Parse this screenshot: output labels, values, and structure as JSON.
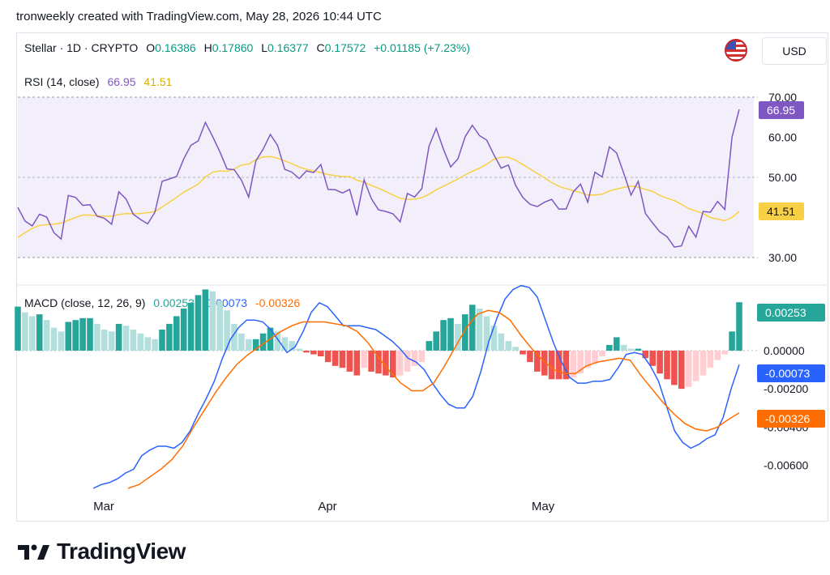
{
  "header": {
    "caption": "tronweekly created with TradingView.com, May 28, 2026 10:44 UTC"
  },
  "symbol": {
    "name": "Stellar · 1D · CRYPTO",
    "o_label": "O",
    "o": "0.16386",
    "h_label": "H",
    "h": "0.17860",
    "l_label": "L",
    "l": "0.16377",
    "c_label": "C",
    "c": "0.17572",
    "change": "+0.01185 (+7.23%)"
  },
  "currency": "USD",
  "brand": {
    "name": "TradingView"
  },
  "colors": {
    "rsi_line": "#7e57c2",
    "rsi_ma": "#f7d046",
    "rsi_bg": "#f3effa",
    "macd_line": "#2962ff",
    "signal_line": "#ff6d00",
    "hist_pos_strong": "#26a69a",
    "hist_pos_weak": "#b2dfdb",
    "hist_neg_strong": "#ef5350",
    "hist_neg_weak": "#ffcdd2"
  },
  "chart_data": [
    {
      "type": "line",
      "title": "RSI (14, close)",
      "legend_values": [
        "66.95",
        "41.51"
      ],
      "ylim": [
        30,
        70
      ],
      "yticks": [
        "70.00",
        "60.00",
        "50.00",
        "30.00"
      ],
      "badges": [
        "66.95",
        "41.51"
      ],
      "series": [
        {
          "name": "RSI",
          "values": [
            42.5,
            39.1,
            37.9,
            40.8,
            40.1,
            36.2,
            34.6,
            45.5,
            45.0,
            43.0,
            43.2,
            40.3,
            39.8,
            38.3,
            46.4,
            44.6,
            40.8,
            39.5,
            38.4,
            41.3,
            49.0,
            49.6,
            50.2,
            54.6,
            58.0,
            59.1,
            63.7,
            60.2,
            56.4,
            52.1,
            51.9,
            49.3,
            45.1,
            54.1,
            57.0,
            60.7,
            58.0,
            52.0,
            51.3,
            49.7,
            51.6,
            51.2,
            53.2,
            47.0,
            46.9,
            46.1,
            47.0,
            40.5,
            49.4,
            44.7,
            41.9,
            41.5,
            40.9,
            38.9,
            46.0,
            45.1,
            47.2,
            57.8,
            62.2,
            57.0,
            52.6,
            54.6,
            60.1,
            63.0,
            60.4,
            59.3,
            55.6,
            52.3,
            53.1,
            48.0,
            45.0,
            43.3,
            42.7,
            43.8,
            44.5,
            42.1,
            42.1,
            46.4,
            48.3,
            43.8,
            51.3,
            50.1,
            57.6,
            56.1,
            51.0,
            45.6,
            49.0,
            41.0,
            38.6,
            36.4,
            35.2,
            32.6,
            32.9,
            37.8,
            35.1,
            41.5,
            41.3,
            44.0,
            42.0,
            60.0,
            66.95
          ]
        },
        {
          "name": "MA",
          "values": [
            35.0,
            36.2,
            37.3,
            38.0,
            38.2,
            38.3,
            38.6,
            39.3,
            40.0,
            40.6,
            40.6,
            40.4,
            40.3,
            40.3,
            40.7,
            41.0,
            40.9,
            41.0,
            41.2,
            41.5,
            42.6,
            43.8,
            45.0,
            46.3,
            47.3,
            48.3,
            50.1,
            51.3,
            51.6,
            51.5,
            52.1,
            53.1,
            53.3,
            54.4,
            55.1,
            55.2,
            54.8,
            54.1,
            53.4,
            52.6,
            52.0,
            51.6,
            51.2,
            50.7,
            50.4,
            50.2,
            50.2,
            49.3,
            48.8,
            48.0,
            47.3,
            46.5,
            45.6,
            44.8,
            44.5,
            44.6,
            44.9,
            45.8,
            46.9,
            47.8,
            48.7,
            49.6,
            50.6,
            51.5,
            52.3,
            53.3,
            54.5,
            55.0,
            55.0,
            54.3,
            53.2,
            52.1,
            51.0,
            49.9,
            48.7,
            47.8,
            47.2,
            46.7,
            46.2,
            45.6,
            45.6,
            45.8,
            46.6,
            47.1,
            47.5,
            47.8,
            47.6,
            47.0,
            46.5,
            45.5,
            44.8,
            44.2,
            43.3,
            42.2,
            41.6,
            41.0,
            40.0,
            39.6,
            39.2,
            40.0,
            41.51
          ]
        }
      ]
    },
    {
      "type": "bar",
      "title": "MACD (close, 12, 26, 9)",
      "legend_values": [
        "0.00253",
        "-0.00073",
        "-0.00326"
      ],
      "ylim": [
        -0.0072,
        0.0033
      ],
      "yticks": [
        "0.00200",
        "0.00000",
        "-0.00200",
        "-0.00400",
        "-0.00600"
      ],
      "badges": [
        "0.00253",
        "-0.00073",
        "-0.00326"
      ],
      "x_labels": [
        "Mar",
        "Apr",
        "May"
      ],
      "histogram": [
        0.0023,
        0.002,
        0.0018,
        0.0019,
        0.0016,
        0.0012,
        0.001,
        0.0015,
        0.0016,
        0.0017,
        0.0017,
        0.0014,
        0.0011,
        0.001,
        0.0014,
        0.0013,
        0.0011,
        0.0009,
        0.0007,
        0.0006,
        0.0011,
        0.0014,
        0.0018,
        0.0022,
        0.0025,
        0.0029,
        0.0032,
        0.0031,
        0.0026,
        0.0021,
        0.0014,
        0.0009,
        0.0006,
        0.0006,
        0.0009,
        0.0012,
        0.001,
        0.0007,
        0.0005,
        0.0001,
        -0.0001,
        -0.0002,
        -0.0003,
        -0.0006,
        -0.0008,
        -0.0009,
        -0.0011,
        -0.0013,
        -0.0009,
        -0.0011,
        -0.0012,
        -0.0013,
        -0.0014,
        -0.0013,
        -0.0011,
        -0.0008,
        -0.0006,
        0.0005,
        0.001,
        0.0016,
        0.0017,
        0.0014,
        0.0019,
        0.0024,
        0.0022,
        0.0018,
        0.0013,
        0.0009,
        0.0005,
        0.0002,
        -0.0002,
        -0.0006,
        -0.0011,
        -0.0013,
        -0.0015,
        -0.0015,
        -0.0015,
        -0.0014,
        -0.0012,
        -0.0009,
        -0.0007,
        -0.0003,
        0.0003,
        0.0007,
        0.0003,
        0.0001,
        0.0001,
        -0.0004,
        -0.0008,
        -0.0012,
        -0.0015,
        -0.0018,
        -0.002,
        -0.0019,
        -0.0016,
        -0.0013,
        -0.0009,
        -0.0005,
        -0.0002,
        0.001,
        0.00253
      ],
      "series": [
        {
          "name": "MACD",
          "values": [
            -0.0072,
            -0.007,
            -0.0069,
            -0.0067,
            -0.0064,
            -0.0062,
            -0.0055,
            -0.0052,
            -0.005,
            -0.005,
            -0.0051,
            -0.0048,
            -0.0042,
            -0.0033,
            -0.0025,
            -0.0016,
            -0.0004,
            0.0006,
            0.0012,
            0.0016,
            0.0016,
            0.0015,
            0.0011,
            0.0005,
            -0.0001,
            0.0002,
            0.001,
            0.002,
            0.0025,
            0.0023,
            0.0018,
            0.0013,
            0.0013,
            0.0013,
            0.0012,
            0.0011,
            0.0008,
            0.0005,
            0.0001,
            -0.0004,
            -0.0006,
            -0.001,
            -0.0017,
            -0.0023,
            -0.0028,
            -0.003,
            -0.003,
            -0.0024,
            -0.0011,
            0.0005,
            0.0017,
            0.0027,
            0.0032,
            0.0034,
            0.0033,
            0.0028,
            0.0016,
            0.0004,
            -0.0006,
            -0.0014,
            -0.0017,
            -0.0017,
            -0.0016,
            -0.0016,
            -0.0015,
            -0.0009,
            -0.0002,
            -0.0001,
            -0.0002,
            -0.0008,
            -0.0016,
            -0.0029,
            -0.0042,
            -0.0048,
            -0.0051,
            -0.0049,
            -0.0046,
            -0.0044,
            -0.0035,
            -0.002,
            -0.00073
          ]
        },
        {
          "name": "Signal",
          "values": [
            -0.0072,
            -0.007,
            -0.0066,
            -0.0062,
            -0.0057,
            -0.005,
            -0.004,
            -0.0031,
            -0.0022,
            -0.0014,
            -0.0007,
            -0.0002,
            0.0002,
            0.0006,
            0.001,
            0.0013,
            0.0015,
            0.0015,
            0.0015,
            0.0014,
            0.0013,
            0.001,
            0.0004,
            -0.0004,
            -0.0011,
            -0.0017,
            -0.0021,
            -0.0021,
            -0.0017,
            -0.0008,
            0.0002,
            0.0012,
            0.0019,
            0.0021,
            0.002,
            0.0016,
            0.0008,
            0.0001,
            -0.0005,
            -0.001,
            -0.0012,
            -0.0012,
            -0.0008,
            -0.0006,
            -0.0005,
            -0.0004,
            -0.0005,
            -0.0013,
            -0.002,
            -0.0027,
            -0.0033,
            -0.0038,
            -0.0041,
            -0.0042,
            -0.004,
            -0.0036,
            -0.00326
          ]
        }
      ]
    }
  ]
}
